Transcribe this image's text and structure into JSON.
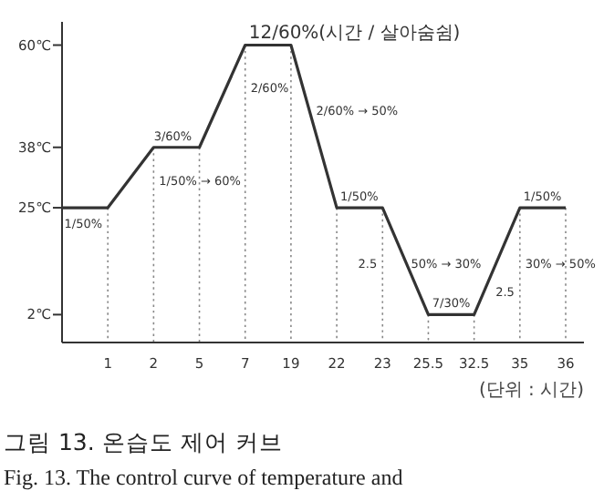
{
  "chart_data": {
    "type": "line",
    "categories": [
      null,
      "1",
      "2",
      "5",
      "7",
      "19",
      "22",
      "23",
      "25.5",
      "32.5",
      "35",
      "36"
    ],
    "values": [
      25,
      25,
      38,
      38,
      60,
      60,
      25,
      25,
      2,
      2,
      25,
      25
    ],
    "color": "#333333",
    "line_style": "solid",
    "ylim": [
      -4,
      65
    ],
    "yticks": [
      {
        "value": 2,
        "label": "2℃"
      },
      {
        "value": 25,
        "label": "25℃"
      },
      {
        "value": 38,
        "label": "38℃"
      },
      {
        "value": 60,
        "label": "60℃"
      }
    ],
    "ref_lines": [
      {
        "axis": "x",
        "value": "1",
        "line_style": "dotted",
        "color": "#888888"
      },
      {
        "axis": "x",
        "value": "2",
        "line_style": "dotted",
        "color": "#888888"
      },
      {
        "axis": "x",
        "value": "5",
        "line_style": "dotted",
        "color": "#888888"
      },
      {
        "axis": "x",
        "value": "7",
        "line_style": "dotted",
        "color": "#888888"
      },
      {
        "axis": "x",
        "value": "19",
        "line_style": "dotted",
        "color": "#888888"
      },
      {
        "axis": "x",
        "value": "22",
        "line_style": "dotted",
        "color": "#888888"
      },
      {
        "axis": "x",
        "value": "23",
        "line_style": "dotted",
        "color": "#888888"
      },
      {
        "axis": "x",
        "value": "25.5",
        "line_style": "dotted",
        "color": "#888888"
      },
      {
        "axis": "x",
        "value": "32.5",
        "line_style": "dotted",
        "color": "#888888"
      },
      {
        "axis": "x",
        "value": "35",
        "line_style": "dotted",
        "color": "#888888"
      },
      {
        "axis": "x",
        "value": "36",
        "line_style": "dotted",
        "color": "#888888"
      }
    ],
    "annotations": [
      {
        "text": "1/50%",
        "x": "1",
        "y": 25
      },
      {
        "text": "3/60%",
        "x": "2",
        "y": 38
      },
      {
        "text": "1/50% → 60%",
        "x": "2",
        "y": 30
      },
      {
        "text": "2/60%",
        "x": "7",
        "y": 50
      },
      {
        "text": "12/60%(시간 / 살아숨쉼)",
        "x": "7",
        "y": 60
      },
      {
        "text": "2/60% → 50%",
        "x": "19",
        "y": 45
      },
      {
        "text": "1/50%",
        "x": "22",
        "y": 25
      },
      {
        "text": "2.5",
        "x": "23",
        "y": 12
      },
      {
        "text": "50% → 30%",
        "x": "23",
        "y": 12
      },
      {
        "text": "7/30%",
        "x": "25.5",
        "y": 2
      },
      {
        "text": "2.5",
        "x": "35",
        "y": 6
      },
      {
        "text": "30% → 50%",
        "x": "35",
        "y": 12
      },
      {
        "text": "1/50%",
        "x": "35",
        "y": 25
      },
      "(단위 : 시간)",
      "그림 13. 온습도 제어 커브",
      "Fig. 13. The control curve of temperature and"
    ]
  }
}
